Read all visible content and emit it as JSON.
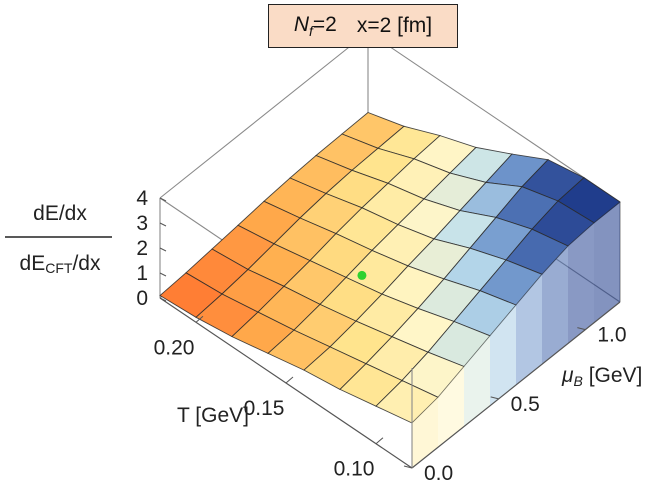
{
  "chart_data": {
    "type": "surface3d",
    "title": {
      "nf_label": "N",
      "nf_subscript": "f",
      "nf_value": "=2",
      "x_label": "x=2 [fm]"
    },
    "zlabel": {
      "numerator": "dE/dx",
      "denominator_prefix": "dE",
      "denominator_subscript": "CFT",
      "denominator_suffix": "/dx"
    },
    "tlabel": "T [GeV]",
    "mulabel": {
      "symbol": "μ",
      "subscript": "B",
      "unit": " [GeV]"
    },
    "t_ticks": [
      "0.20",
      "0.15",
      "0.10"
    ],
    "t_tick_values": [
      0.2,
      0.15,
      0.1
    ],
    "mu_ticks": [
      "0.0",
      "0.5",
      "1.0"
    ],
    "mu_tick_values": [
      0.0,
      0.5,
      1.0
    ],
    "z_ticks": [
      "0",
      "1",
      "2",
      "3",
      "4"
    ],
    "z_tick_values": [
      0,
      1,
      2,
      3,
      4
    ],
    "t_range": [
      0.08,
      0.22
    ],
    "mu_range": [
      0.0,
      1.2
    ],
    "z_range": [
      0,
      4
    ],
    "marker": {
      "t": 0.155,
      "mu": 0.49,
      "z": 1.35,
      "color": "#2fd12f"
    },
    "surface_t": [
      0.22,
      0.2,
      0.18,
      0.16,
      0.14,
      0.12,
      0.1,
      0.08
    ],
    "surface_mu": [
      0.0,
      0.15,
      0.3,
      0.45,
      0.6,
      0.75,
      0.9,
      1.05,
      1.2
    ],
    "surface_z": [
      [
        0.1,
        0.18,
        0.3,
        0.42,
        0.55,
        0.65,
        0.72,
        0.75,
        0.78
      ],
      [
        0.2,
        0.3,
        0.45,
        0.65,
        0.85,
        1.0,
        1.1,
        1.15,
        1.2
      ],
      [
        0.4,
        0.55,
        0.75,
        0.95,
        1.2,
        1.4,
        1.55,
        1.7,
        1.8
      ],
      [
        0.7,
        0.8,
        1.0,
        1.25,
        1.5,
        1.7,
        1.9,
        2.1,
        2.3
      ],
      [
        1.0,
        1.1,
        1.3,
        1.55,
        1.85,
        2.1,
        2.4,
        2.7,
        3.0
      ],
      [
        1.2,
        1.4,
        1.65,
        1.95,
        2.3,
        2.7,
        3.1,
        3.5,
        3.75
      ],
      [
        1.5,
        1.7,
        2.0,
        2.4,
        2.8,
        3.2,
        3.6,
        3.9,
        4.0
      ],
      [
        1.8,
        2.0,
        2.4,
        2.8,
        3.2,
        3.6,
        3.9,
        4.0,
        4.0
      ]
    ],
    "colormap": [
      "#ff6a2a",
      "#ffad4d",
      "#ffe38a",
      "#fff6c8",
      "#bfe0ee",
      "#5f86c4",
      "#1e3a8a"
    ],
    "grid": false,
    "box": true
  }
}
